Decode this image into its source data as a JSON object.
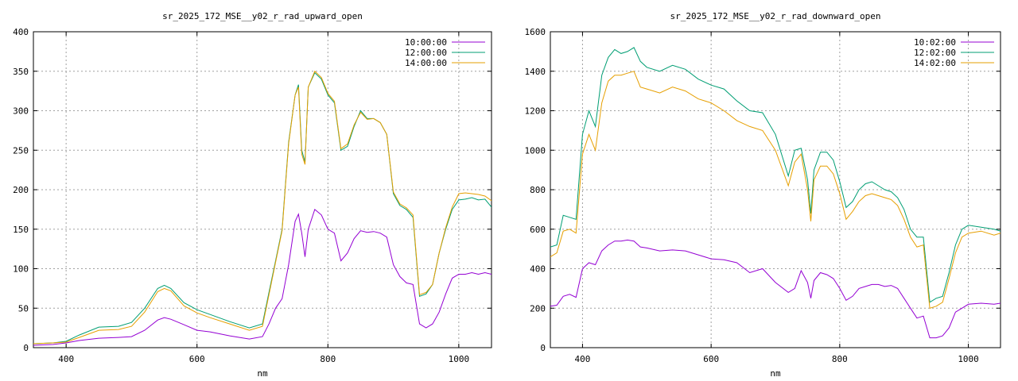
{
  "colors": {
    "s1": "#9400d3",
    "s2": "#009e73",
    "s3": "#e69f00",
    "grid": "#a0a0a0",
    "axis": "#000000"
  },
  "chart_data": [
    {
      "type": "line",
      "title": "sr_2025_172_MSE__y02_r_rad_upward_open",
      "xlabel": "nm",
      "ylabel": "",
      "xlim": [
        350,
        1050
      ],
      "ylim": [
        0,
        400
      ],
      "xticks": [
        400,
        600,
        800,
        1000
      ],
      "yticks": [
        0,
        50,
        100,
        150,
        200,
        250,
        300,
        350,
        400
      ],
      "grid": true,
      "legend": "top-right",
      "series": [
        {
          "name": "10:00:00",
          "color": "#9400d3",
          "x": [
            350,
            380,
            400,
            420,
            450,
            480,
            500,
            520,
            540,
            550,
            560,
            580,
            600,
            620,
            650,
            680,
            700,
            710,
            720,
            730,
            740,
            750,
            755,
            760,
            765,
            770,
            780,
            790,
            800,
            810,
            820,
            830,
            840,
            850,
            860,
            870,
            880,
            890,
            900,
            910,
            920,
            930,
            940,
            950,
            960,
            970,
            980,
            990,
            1000,
            1010,
            1020,
            1030,
            1040,
            1050
          ],
          "y": [
            3,
            4,
            6,
            9,
            12,
            13,
            14,
            22,
            35,
            38,
            36,
            29,
            22,
            20,
            15,
            11,
            14,
            30,
            50,
            62,
            105,
            160,
            169,
            145,
            115,
            150,
            175,
            168,
            150,
            145,
            110,
            120,
            138,
            148,
            146,
            147,
            145,
            140,
            105,
            90,
            82,
            80,
            30,
            25,
            30,
            45,
            68,
            88,
            93,
            93,
            95,
            93,
            95,
            93
          ]
        },
        {
          "name": "12:00:00",
          "color": "#009e73",
          "x": [
            350,
            380,
            400,
            420,
            450,
            480,
            500,
            520,
            540,
            550,
            560,
            580,
            600,
            620,
            650,
            680,
            700,
            710,
            720,
            730,
            740,
            750,
            755,
            760,
            765,
            770,
            780,
            790,
            800,
            810,
            820,
            830,
            840,
            850,
            860,
            870,
            880,
            890,
            900,
            910,
            920,
            930,
            940,
            950,
            960,
            970,
            980,
            990,
            1000,
            1010,
            1020,
            1030,
            1040,
            1050
          ],
          "y": [
            5,
            6,
            8,
            16,
            26,
            27,
            32,
            50,
            75,
            79,
            75,
            57,
            48,
            42,
            33,
            25,
            30,
            70,
            110,
            150,
            260,
            320,
            333,
            250,
            235,
            330,
            348,
            340,
            320,
            310,
            250,
            255,
            280,
            300,
            290,
            290,
            285,
            270,
            195,
            180,
            175,
            165,
            65,
            68,
            80,
            120,
            150,
            175,
            187,
            188,
            190,
            187,
            188,
            178
          ]
        },
        {
          "name": "14:00:00",
          "color": "#e69f00",
          "x": [
            350,
            380,
            400,
            420,
            450,
            480,
            500,
            520,
            540,
            550,
            560,
            580,
            600,
            620,
            650,
            680,
            700,
            710,
            720,
            730,
            740,
            750,
            755,
            760,
            765,
            770,
            780,
            790,
            800,
            810,
            820,
            830,
            840,
            850,
            860,
            870,
            880,
            890,
            900,
            910,
            920,
            930,
            940,
            950,
            960,
            970,
            980,
            990,
            1000,
            1010,
            1020,
            1030,
            1040,
            1050
          ],
          "y": [
            5,
            6,
            7,
            13,
            22,
            23,
            27,
            45,
            71,
            75,
            72,
            53,
            44,
            38,
            30,
            22,
            27,
            67,
            108,
            148,
            258,
            320,
            330,
            245,
            232,
            330,
            350,
            342,
            322,
            312,
            252,
            258,
            282,
            298,
            289,
            290,
            285,
            270,
            197,
            182,
            177,
            168,
            67,
            70,
            80,
            120,
            152,
            178,
            195,
            196,
            195,
            194,
            192,
            186
          ]
        }
      ]
    },
    {
      "type": "line",
      "title": "sr_2025_172_MSE__y02_r_rad_downward_open",
      "xlabel": "nm",
      "ylabel": "",
      "xlim": [
        350,
        1050
      ],
      "ylim": [
        0,
        1600
      ],
      "xticks": [
        400,
        600,
        800,
        1000
      ],
      "yticks": [
        0,
        200,
        400,
        600,
        800,
        1000,
        1200,
        1400,
        1600
      ],
      "grid": true,
      "legend": "top-right",
      "series": [
        {
          "name": "10:02:00",
          "color": "#9400d3",
          "x": [
            350,
            360,
            370,
            380,
            390,
            400,
            410,
            420,
            430,
            440,
            450,
            460,
            470,
            480,
            490,
            500,
            520,
            540,
            560,
            580,
            600,
            620,
            640,
            660,
            680,
            700,
            720,
            730,
            740,
            750,
            755,
            760,
            770,
            780,
            790,
            800,
            810,
            820,
            830,
            840,
            850,
            860,
            870,
            880,
            890,
            900,
            910,
            920,
            930,
            940,
            950,
            960,
            970,
            980,
            990,
            1000,
            1020,
            1040,
            1050
          ],
          "y": [
            210,
            215,
            260,
            270,
            255,
            400,
            430,
            420,
            490,
            520,
            540,
            540,
            545,
            540,
            510,
            505,
            490,
            495,
            490,
            470,
            450,
            445,
            430,
            380,
            400,
            330,
            280,
            300,
            390,
            330,
            250,
            340,
            380,
            370,
            350,
            300,
            240,
            260,
            300,
            310,
            320,
            320,
            310,
            315,
            300,
            250,
            200,
            150,
            160,
            50,
            50,
            60,
            100,
            180,
            200,
            220,
            225,
            220,
            225
          ]
        },
        {
          "name": "12:02:00",
          "color": "#009e73",
          "x": [
            350,
            360,
            370,
            380,
            390,
            400,
            410,
            420,
            430,
            440,
            450,
            460,
            470,
            480,
            490,
            500,
            520,
            540,
            560,
            580,
            600,
            620,
            640,
            660,
            680,
            700,
            720,
            730,
            740,
            750,
            755,
            760,
            770,
            780,
            790,
            800,
            810,
            820,
            830,
            840,
            850,
            860,
            870,
            880,
            890,
            900,
            910,
            920,
            930,
            940,
            950,
            960,
            970,
            980,
            990,
            1000,
            1020,
            1040,
            1050
          ],
          "y": [
            510,
            520,
            670,
            660,
            650,
            1080,
            1200,
            1120,
            1380,
            1470,
            1510,
            1490,
            1500,
            1520,
            1450,
            1420,
            1400,
            1430,
            1410,
            1360,
            1330,
            1310,
            1250,
            1200,
            1190,
            1080,
            870,
            1000,
            1010,
            850,
            680,
            900,
            990,
            990,
            950,
            840,
            710,
            740,
            800,
            830,
            840,
            820,
            800,
            790,
            760,
            700,
            600,
            560,
            560,
            230,
            250,
            260,
            380,
            520,
            600,
            620,
            610,
            600,
            590
          ]
        },
        {
          "name": "14:02:00",
          "color": "#e69f00",
          "x": [
            350,
            360,
            370,
            380,
            390,
            400,
            410,
            420,
            430,
            440,
            450,
            460,
            470,
            480,
            490,
            500,
            520,
            540,
            560,
            580,
            600,
            620,
            640,
            660,
            680,
            700,
            720,
            730,
            740,
            750,
            755,
            760,
            770,
            780,
            790,
            800,
            810,
            820,
            830,
            840,
            850,
            860,
            870,
            880,
            890,
            900,
            910,
            920,
            930,
            940,
            950,
            960,
            970,
            980,
            990,
            1000,
            1020,
            1040,
            1050
          ],
          "y": [
            460,
            480,
            590,
            600,
            580,
            980,
            1080,
            1000,
            1240,
            1350,
            1380,
            1380,
            1390,
            1400,
            1320,
            1310,
            1290,
            1320,
            1300,
            1260,
            1240,
            1200,
            1150,
            1120,
            1100,
            1000,
            820,
            940,
            980,
            800,
            640,
            850,
            920,
            920,
            880,
            780,
            650,
            690,
            740,
            770,
            780,
            770,
            760,
            750,
            720,
            650,
            560,
            510,
            520,
            200,
            210,
            230,
            350,
            480,
            560,
            580,
            590,
            570,
            580
          ]
        }
      ]
    }
  ]
}
